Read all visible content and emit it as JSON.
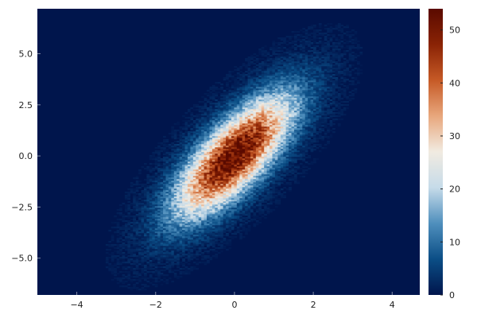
{
  "chart_data": {
    "type": "heatmap",
    "subtype": "2d-histogram",
    "title": "",
    "xlabel": "",
    "ylabel": "",
    "xlim": [
      -5.0,
      4.7
    ],
    "ylim": [
      -6.8,
      7.2
    ],
    "x_ticks": [
      {
        "value": -4,
        "label": "−4"
      },
      {
        "value": -2,
        "label": "−2"
      },
      {
        "value": 0,
        "label": "0"
      },
      {
        "value": 2,
        "label": "2"
      },
      {
        "value": 4,
        "label": "4"
      }
    ],
    "y_ticks": [
      {
        "value": 5.0,
        "label": "5.0"
      },
      {
        "value": 2.5,
        "label": "2.5"
      },
      {
        "value": 0.0,
        "label": "0.0"
      },
      {
        "value": -2.5,
        "label": "−2.5"
      },
      {
        "value": -5.0,
        "label": "−5.0"
      }
    ],
    "colorbar": {
      "range": [
        0,
        54
      ],
      "ticks": [
        {
          "value": 0,
          "label": "0"
        },
        {
          "value": 10,
          "label": "10"
        },
        {
          "value": 20,
          "label": "20"
        },
        {
          "value": 30,
          "label": "30"
        },
        {
          "value": 40,
          "label": "40"
        },
        {
          "value": 50,
          "label": "50"
        }
      ],
      "colormap": [
        "#00154c",
        "#0b4e86",
        "#4f8fbd",
        "#c6dbe9",
        "#f1ebe1",
        "#e8a77d",
        "#c65a26",
        "#8a2305",
        "#5a0a00"
      ]
    },
    "distribution": {
      "kind": "bivariate-normal",
      "mean": [
        0.0,
        0.0
      ],
      "sd_x": 1.0,
      "sd_y": 2.0,
      "correlation": 0.75,
      "peak_count": 54,
      "nbins_x": 140,
      "nbins_y": 180
    },
    "grid": false,
    "legend": "colorbar-right"
  }
}
